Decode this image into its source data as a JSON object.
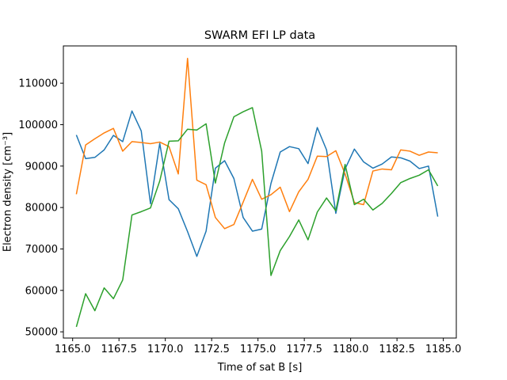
{
  "chart_data": {
    "type": "line",
    "title": "SWARM EFI LP data",
    "xlabel": "Time of sat B [s]",
    "ylabel": "Electron density [cm⁻³]",
    "xlim": [
      1164.5,
      1185.7
    ],
    "ylim": [
      48500,
      119000
    ],
    "xticks": [
      1165.0,
      1167.5,
      1170.0,
      1172.5,
      1175.0,
      1177.5,
      1180.0,
      1182.5,
      1185.0
    ],
    "xtick_labels": [
      "1165.0",
      "1167.5",
      "1170.0",
      "1172.5",
      "1175.0",
      "1177.5",
      "1180.0",
      "1182.5",
      "1185.0"
    ],
    "yticks": [
      50000,
      60000,
      70000,
      80000,
      90000,
      100000,
      110000
    ],
    "ytick_labels": [
      "50000",
      "60000",
      "70000",
      "80000",
      "90000",
      "100000",
      "110000"
    ],
    "grid": false,
    "legend": "none",
    "x": [
      1165.2,
      1165.7,
      1166.2,
      1166.7,
      1167.2,
      1167.7,
      1168.2,
      1168.7,
      1169.2,
      1169.7,
      1170.2,
      1170.7,
      1171.2,
      1171.7,
      1172.2,
      1172.7,
      1173.2,
      1173.7,
      1174.2,
      1174.7,
      1175.2,
      1175.7,
      1176.2,
      1176.7,
      1177.2,
      1177.7,
      1178.2,
      1178.7,
      1179.2,
      1179.7,
      1180.2,
      1180.7,
      1181.2,
      1181.7,
      1182.2,
      1182.7,
      1183.2,
      1183.7,
      1184.2,
      1184.7
    ],
    "series": [
      {
        "color": "#1f77b4",
        "values": [
          97500,
          91800,
          92100,
          93900,
          97400,
          95900,
          103300,
          98500,
          80900,
          95500,
          81900,
          79700,
          74200,
          68200,
          74300,
          89500,
          91300,
          87000,
          77600,
          74300,
          74800,
          85800,
          93400,
          94700,
          94200,
          90600,
          99300,
          93900,
          78600,
          89300,
          94100,
          91000,
          89500,
          90500,
          92200,
          92000,
          91200,
          89400,
          90000,
          77800
        ]
      },
      {
        "color": "#ff7f0e",
        "values": [
          83200,
          95100,
          96600,
          98000,
          99100,
          93600,
          95900,
          95700,
          95400,
          95800,
          94700,
          88100,
          116000,
          86600,
          85500,
          77600,
          74900,
          75900,
          81300,
          86800,
          82000,
          83100,
          84900,
          79000,
          83800,
          86800,
          92400,
          92300,
          93700,
          88100,
          81200,
          80700,
          88800,
          89300,
          89100,
          93900,
          93600,
          92600,
          93400,
          93200
        ]
      },
      {
        "color": "#2ca02c",
        "values": [
          51200,
          59200,
          55100,
          60600,
          58000,
          62500,
          78200,
          79000,
          79900,
          86400,
          96000,
          96100,
          98900,
          98700,
          100200,
          85900,
          95600,
          101900,
          103100,
          104100,
          93600,
          63600,
          69600,
          73000,
          77000,
          72200,
          78900,
          82300,
          79200,
          90400,
          80700,
          82000,
          79400,
          81000,
          83400,
          86000,
          87000,
          87800,
          89100,
          85200
        ]
      }
    ]
  }
}
